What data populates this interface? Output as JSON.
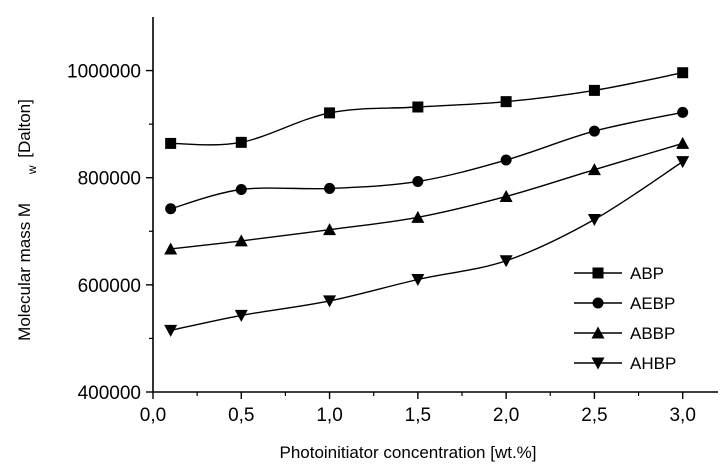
{
  "chart_data": {
    "type": "line",
    "title": "",
    "xlabel": "Photoinitiator concentration [wt.%]",
    "ylabel": {
      "main": "Molecular mass M",
      "subscript": "w",
      "unit": "[Dalton]"
    },
    "xlim": [
      0,
      3.2
    ],
    "ylim": [
      400000,
      1100000
    ],
    "x_ticks": [
      0.0,
      0.5,
      1.0,
      1.5,
      2.0,
      2.5,
      3.0
    ],
    "x_tick_labels": [
      "0,0",
      "0,5",
      "1,0",
      "1,5",
      "2,0",
      "2,5",
      "3,0"
    ],
    "y_ticks": [
      400000,
      600000,
      800000,
      1000000
    ],
    "y_tick_labels": [
      "400000",
      "600000",
      "800000",
      "1000000"
    ],
    "x": [
      0.1,
      0.5,
      1.0,
      1.5,
      2.0,
      2.5,
      3.0
    ],
    "series": [
      {
        "name": "ABP",
        "marker": "square",
        "values": [
          864000,
          866000,
          921000,
          932000,
          942000,
          963000,
          996000
        ]
      },
      {
        "name": "AEBP",
        "marker": "circle",
        "values": [
          742000,
          778000,
          780000,
          793000,
          833000,
          887000,
          922000
        ]
      },
      {
        "name": "ABBP",
        "marker": "triangle-up",
        "values": [
          667000,
          682000,
          703000,
          726000,
          765000,
          815000,
          864000
        ]
      },
      {
        "name": "AHBP",
        "marker": "triangle-down",
        "values": [
          515000,
          543000,
          570000,
          610000,
          645000,
          722000,
          830000
        ]
      }
    ],
    "grid": false,
    "legend_position": "lower-right",
    "line_color": "#000000"
  }
}
